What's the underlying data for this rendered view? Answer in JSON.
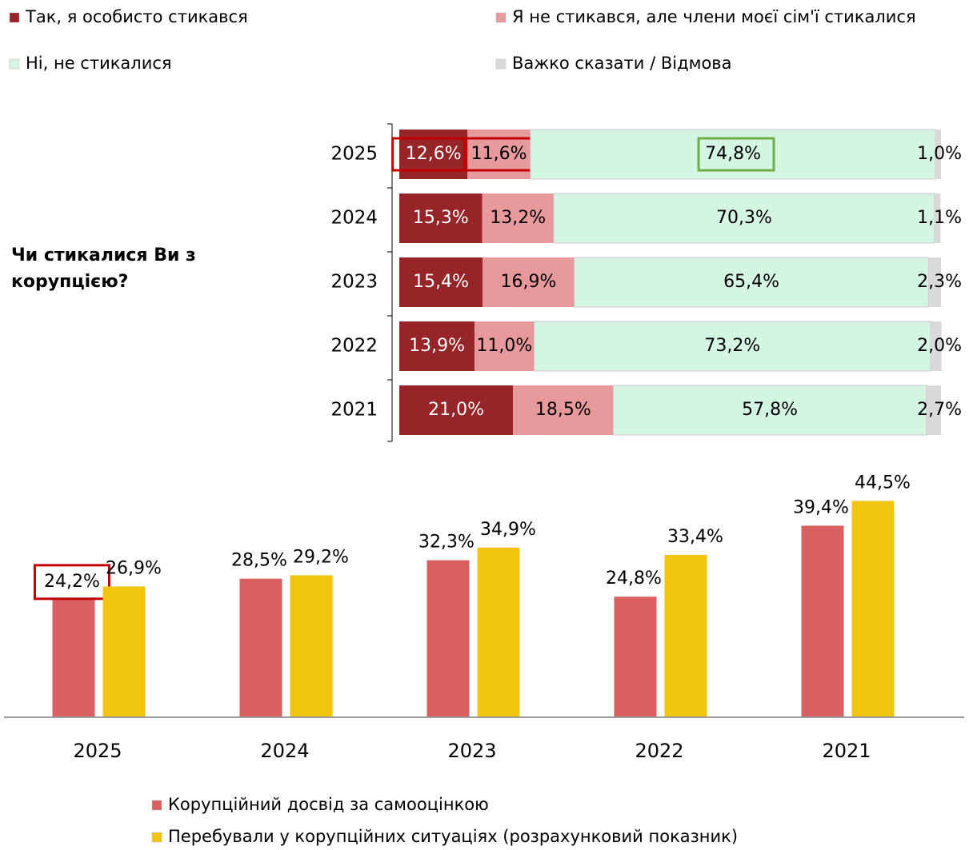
{
  "chart_data": [
    {
      "type": "bar",
      "orientation": "horizontal",
      "stacked": true,
      "title": "Чи стикалися Ви з корупцією?",
      "categories": [
        "2025",
        "2024",
        "2023",
        "2022",
        "2021"
      ],
      "xlim": [
        0,
        100
      ],
      "legend": "top",
      "series": [
        {
          "name": "Так, я особисто стикався",
          "color": "#962428",
          "values": [
            12.6,
            15.3,
            15.4,
            13.9,
            21.0
          ],
          "value_labels": [
            "12,6%",
            "15,3%",
            "15,4%",
            "13,9%",
            "21,0%"
          ]
        },
        {
          "name": "Я не стикався, але члени моєї сім'ї стикалися",
          "color": "#e8999b",
          "values": [
            11.6,
            13.2,
            16.9,
            11.0,
            18.5
          ],
          "value_labels": [
            "11,6%",
            "13,2%",
            "16,9%",
            "11,0%",
            "18,5%"
          ]
        },
        {
          "name": "Ні, не стикалися",
          "color": "#d5f5e3",
          "values": [
            74.8,
            70.3,
            65.4,
            73.2,
            57.8
          ],
          "value_labels": [
            "74,8%",
            "70,3%",
            "65,4%",
            "73,2%",
            "57,8%"
          ]
        },
        {
          "name": "Важко сказати / Відмова",
          "color": "#d9d9d9",
          "values": [
            1.0,
            1.1,
            2.3,
            2.0,
            2.7
          ],
          "value_labels": [
            "1,0%",
            "1,1%",
            "2,3%",
            "2,0%",
            "2,7%"
          ]
        }
      ]
    },
    {
      "type": "bar",
      "orientation": "vertical",
      "categories": [
        "2025",
        "2024",
        "2023",
        "2022",
        "2021"
      ],
      "ylim": [
        0,
        50
      ],
      "legend": "bottom",
      "series": [
        {
          "name": "Корупційний досвід за самооцінкою",
          "color": "#d95f61",
          "values": [
            24.2,
            28.5,
            32.3,
            24.8,
            39.4
          ],
          "value_labels": [
            "24,2%",
            "28,5%",
            "32,3%",
            "24,8%",
            "39,4%"
          ]
        },
        {
          "name": "Перебували у корупційних ситуаціях (розрахунковий показник)",
          "color": "#f2c511",
          "values": [
            26.9,
            29.2,
            34.9,
            33.4,
            44.5
          ],
          "value_labels": [
            "26,9%",
            "29,2%",
            "34,9%",
            "33,4%",
            "44,5%"
          ]
        }
      ]
    }
  ]
}
